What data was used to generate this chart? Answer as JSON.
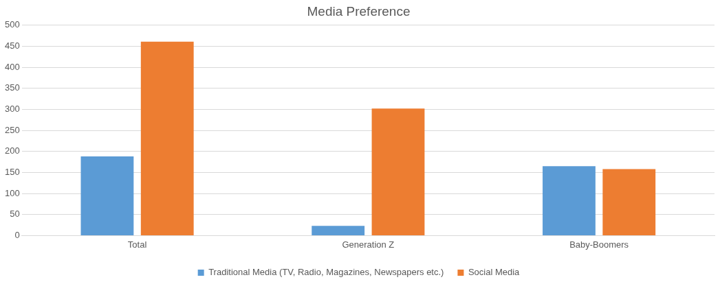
{
  "chart_data": {
    "type": "bar",
    "title": "Media Preference",
    "categories": [
      "Total",
      "Generation Z",
      "Baby-Boomers"
    ],
    "series": [
      {
        "name": "Traditional Media (TV, Radio, Magazines, Newspapers etc.)",
        "color": "#5b9bd5",
        "values": [
          188,
          23,
          165
        ]
      },
      {
        "name": "Social Media",
        "color": "#ed7d31",
        "values": [
          461,
          302,
          158
        ]
      }
    ],
    "ylim": [
      0,
      500
    ],
    "yticks": [
      0,
      50,
      100,
      150,
      200,
      250,
      300,
      350,
      400,
      450,
      500
    ],
    "grid": "y",
    "legend": "bottom"
  }
}
